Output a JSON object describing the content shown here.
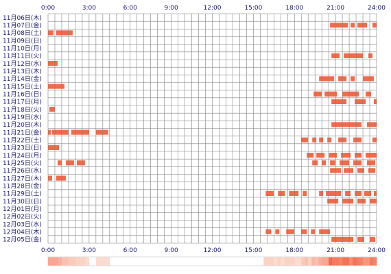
{
  "chart_data": {
    "type": "timeline",
    "x_ticks": [
      "0:00",
      "3:00",
      "6:00",
      "9:00",
      "12:00",
      "15:00",
      "18:00",
      "21:00",
      "24:00"
    ],
    "x_range_hours": [
      0,
      24
    ],
    "grid": true,
    "colors": {
      "bar": "#f26a4a",
      "grid": "#808080",
      "text": "#1a1a6e",
      "summary_low": "#fde4da",
      "summary_high": "#f26a4a"
    },
    "days": [
      {
        "label": "11月06日(木)",
        "segments": []
      },
      {
        "label": "11月07日(金)",
        "segments": [
          [
            20.6,
            21.9
          ],
          [
            22.1,
            22.4
          ],
          [
            22.6,
            23.3
          ],
          [
            23.7,
            24.0
          ]
        ]
      },
      {
        "label": "11月08日(土)",
        "segments": [
          [
            0.0,
            0.4
          ],
          [
            0.6,
            1.8
          ]
        ]
      },
      {
        "label": "11月09日(日)",
        "segments": []
      },
      {
        "label": "11月10日(月)",
        "segments": []
      },
      {
        "label": "11月11日(火)",
        "segments": [
          [
            20.7,
            21.3
          ],
          [
            21.6,
            23.0
          ],
          [
            23.4,
            23.7
          ]
        ]
      },
      {
        "label": "11月12日(水)",
        "segments": [
          [
            0.0,
            0.7
          ]
        ]
      },
      {
        "label": "11月13日(木)",
        "segments": []
      },
      {
        "label": "11月14日(金)",
        "segments": [
          [
            19.8,
            20.9
          ],
          [
            21.2,
            21.8
          ],
          [
            22.1,
            22.4
          ],
          [
            23.0,
            23.8
          ]
        ]
      },
      {
        "label": "11月15日(土)",
        "segments": [
          [
            0.0,
            1.2
          ]
        ]
      },
      {
        "label": "11月16日(日)",
        "segments": [
          [
            19.4,
            20.0
          ],
          [
            20.2,
            21.1
          ],
          [
            21.5,
            22.7
          ],
          [
            23.2,
            23.6
          ]
        ]
      },
      {
        "label": "11月17日(月)",
        "segments": [
          [
            20.7,
            21.8
          ],
          [
            22.4,
            23.2
          ],
          [
            23.8,
            24.0
          ]
        ]
      },
      {
        "label": "11月18日(火)",
        "segments": [
          [
            0.1,
            0.5
          ]
        ]
      },
      {
        "label": "11月19日(水)",
        "segments": []
      },
      {
        "label": "11月20日(木)",
        "segments": [
          [
            20.7,
            22.9
          ],
          [
            23.3,
            24.0
          ]
        ]
      },
      {
        "label": "11月21日(金)",
        "segments": [
          [
            0.0,
            0.2
          ],
          [
            0.3,
            1.5
          ],
          [
            1.7,
            3.0
          ],
          [
            3.5,
            4.4
          ]
        ]
      },
      {
        "label": "11月22日(土)",
        "segments": [
          [
            18.5,
            19.0
          ],
          [
            19.3,
            19.6
          ],
          [
            19.8,
            20.1
          ],
          [
            20.4,
            20.7
          ],
          [
            21.2,
            21.8
          ],
          [
            22.3,
            22.9
          ],
          [
            23.7,
            24.0
          ]
        ]
      },
      {
        "label": "11月23日(日)",
        "segments": [
          [
            0.0,
            0.8
          ]
        ]
      },
      {
        "label": "11月24日(月)",
        "segments": [
          [
            18.9,
            19.4
          ],
          [
            19.6,
            20.2
          ],
          [
            20.5,
            21.1
          ],
          [
            21.4,
            22.1
          ],
          [
            22.4,
            22.9
          ],
          [
            23.2,
            24.0
          ]
        ]
      },
      {
        "label": "11月25日(火)",
        "segments": [
          [
            0.7,
            1.0
          ],
          [
            1.3,
            1.9
          ],
          [
            2.1,
            2.7
          ],
          [
            19.3,
            19.7
          ],
          [
            20.0,
            20.3
          ],
          [
            20.6,
            21.0
          ],
          [
            21.3,
            22.0
          ],
          [
            22.3,
            22.9
          ],
          [
            23.3,
            23.9
          ]
        ]
      },
      {
        "label": "11月26日(水)",
        "segments": [
          [
            20.6,
            21.4
          ],
          [
            21.6,
            22.3
          ],
          [
            22.6,
            23.1
          ],
          [
            23.4,
            23.9
          ]
        ]
      },
      {
        "label": "11月27日(木)",
        "segments": [
          [
            0.0,
            0.3
          ],
          [
            0.6,
            1.3
          ]
        ]
      },
      {
        "label": "11月28日(金)",
        "segments": []
      },
      {
        "label": "11月29日(土)",
        "segments": [
          [
            15.9,
            16.5
          ],
          [
            16.8,
            17.3
          ],
          [
            17.6,
            18.3
          ],
          [
            18.6,
            18.9
          ],
          [
            19.8,
            20.1
          ],
          [
            20.3,
            21.4
          ],
          [
            21.7,
            22.1
          ],
          [
            22.4,
            22.9
          ],
          [
            23.1,
            23.6
          ],
          [
            23.8,
            24.0
          ]
        ]
      },
      {
        "label": "11月30日(日)",
        "segments": [
          [
            20.4,
            21.2
          ],
          [
            21.5,
            22.3
          ],
          [
            22.6,
            23.2
          ],
          [
            23.5,
            24.0
          ]
        ]
      },
      {
        "label": "12月01日(月)",
        "segments": []
      },
      {
        "label": "12月02日(火)",
        "segments": []
      },
      {
        "label": "12月03日(水)",
        "segments": []
      },
      {
        "label": "12月04日(木)",
        "segments": [
          [
            15.9,
            16.3
          ],
          [
            16.6,
            16.9
          ],
          [
            17.4,
            18.0
          ],
          [
            18.5,
            18.9
          ],
          [
            19.2,
            19.5
          ],
          [
            19.8,
            20.6
          ]
        ]
      },
      {
        "label": "12月05日(金)",
        "segments": [
          [
            20.7,
            22.3
          ],
          [
            22.6,
            23.1
          ],
          [
            23.5,
            23.9
          ]
        ]
      }
    ]
  }
}
